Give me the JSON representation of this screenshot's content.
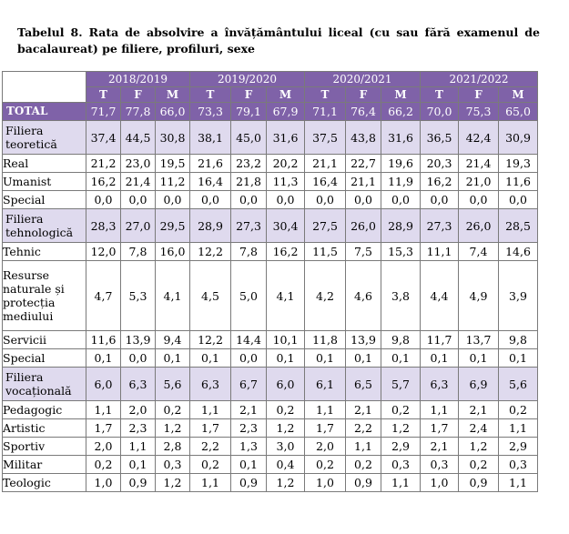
{
  "title": "Tabelul 8. Rata de absolvire a învățământului liceal (cu sau fără examenul de bacalaureat) pe filiere, profiluri, sexe",
  "colors": {
    "header": "#7f62a8",
    "filiera_row": "#dfdaee"
  },
  "years": [
    "2018/2019",
    "2019/2020",
    "2020/2021",
    "2021/2022"
  ],
  "sex_labels": [
    "T",
    "F",
    "M"
  ],
  "rows": [
    {
      "label": "TOTAL",
      "type": "total",
      "values": [
        "71,7",
        "77,8",
        "66,0",
        "73,3",
        "79,1",
        "67,9",
        "71,1",
        "76,4",
        "66,2",
        "70,0",
        "75,3",
        "65,0"
      ]
    },
    {
      "label": "Filiera teoretică",
      "type": "filiera",
      "values": [
        "37,4",
        "44,5",
        "30,8",
        "38,1",
        "45,0",
        "31,6",
        "37,5",
        "43,8",
        "31,6",
        "36,5",
        "42,4",
        "30,9"
      ]
    },
    {
      "label": "Real",
      "type": "normal",
      "values": [
        "21,2",
        "23,0",
        "19,5",
        "21,6",
        "23,2",
        "20,2",
        "21,1",
        "22,7",
        "19,6",
        "20,3",
        "21,4",
        "19,3"
      ]
    },
    {
      "label": "Umanist",
      "type": "normal",
      "values": [
        "16,2",
        "21,4",
        "11,2",
        "16,4",
        "21,8",
        "11,3",
        "16,4",
        "21,1",
        "11,9",
        "16,2",
        "21,0",
        "11,6"
      ]
    },
    {
      "label": "Special",
      "type": "normal",
      "values": [
        "0,0",
        "0,0",
        "0,0",
        "0,0",
        "0,0",
        "0,0",
        "0,0",
        "0,0",
        "0,0",
        "0,0",
        "0,0",
        "0,0"
      ]
    },
    {
      "label": "Filiera tehnologică",
      "type": "filiera",
      "values": [
        "28,3",
        "27,0",
        "29,5",
        "28,9",
        "27,3",
        "30,4",
        "27,5",
        "26,0",
        "28,9",
        "27,3",
        "26,0",
        "28,5"
      ]
    },
    {
      "label": "Tehnic",
      "type": "normal",
      "values": [
        "12,0",
        "7,8",
        "16,0",
        "12,2",
        "7,8",
        "16,2",
        "11,5",
        "7,5",
        "15,3",
        "11,1",
        "7,4",
        "14,6"
      ]
    },
    {
      "label": "Resurse naturale și protecția mediului",
      "type": "tall",
      "values": [
        "4,7",
        "5,3",
        "4,1",
        "4,5",
        "5,0",
        "4,1",
        "4,2",
        "4,6",
        "3,8",
        "4,4",
        "4,9",
        "3,9"
      ]
    },
    {
      "label": "Servicii",
      "type": "normal",
      "values": [
        "11,6",
        "13,9",
        "9,4",
        "12,2",
        "14,4",
        "10,1",
        "11,8",
        "13,9",
        "9,8",
        "11,7",
        "13,7",
        "9,8"
      ]
    },
    {
      "label": "Special",
      "type": "normal",
      "values": [
        "0,1",
        "0,0",
        "0,1",
        "0,1",
        "0,0",
        "0,1",
        "0,1",
        "0,1",
        "0,1",
        "0,1",
        "0,1",
        "0,1"
      ]
    },
    {
      "label": "Filiera vocațională",
      "type": "filiera",
      "values": [
        "6,0",
        "6,3",
        "5,6",
        "6,3",
        "6,7",
        "6,0",
        "6,1",
        "6,5",
        "5,7",
        "6,3",
        "6,9",
        "5,6"
      ]
    },
    {
      "label": "Pedagogic",
      "type": "normal",
      "values": [
        "1,1",
        "2,0",
        "0,2",
        "1,1",
        "2,1",
        "0,2",
        "1,1",
        "2,1",
        "0,2",
        "1,1",
        "2,1",
        "0,2"
      ]
    },
    {
      "label": "Artistic",
      "type": "normal",
      "values": [
        "1,7",
        "2,3",
        "1,2",
        "1,7",
        "2,3",
        "1,2",
        "1,7",
        "2,2",
        "1,2",
        "1,7",
        "2,4",
        "1,1"
      ]
    },
    {
      "label": "Sportiv",
      "type": "normal",
      "values": [
        "2,0",
        "1,1",
        "2,8",
        "2,2",
        "1,3",
        "3,0",
        "2,0",
        "1,1",
        "2,9",
        "2,1",
        "1,2",
        "2,9"
      ]
    },
    {
      "label": "Militar",
      "type": "normal",
      "values": [
        "0,2",
        "0,1",
        "0,3",
        "0,2",
        "0,1",
        "0,4",
        "0,2",
        "0,2",
        "0,3",
        "0,3",
        "0,2",
        "0,3"
      ]
    },
    {
      "label": "Teologic",
      "type": "normal",
      "values": [
        "1,0",
        "0,9",
        "1,2",
        "1,1",
        "0,9",
        "1,2",
        "1,0",
        "0,9",
        "1,1",
        "1,0",
        "0,9",
        "1,1"
      ]
    }
  ]
}
